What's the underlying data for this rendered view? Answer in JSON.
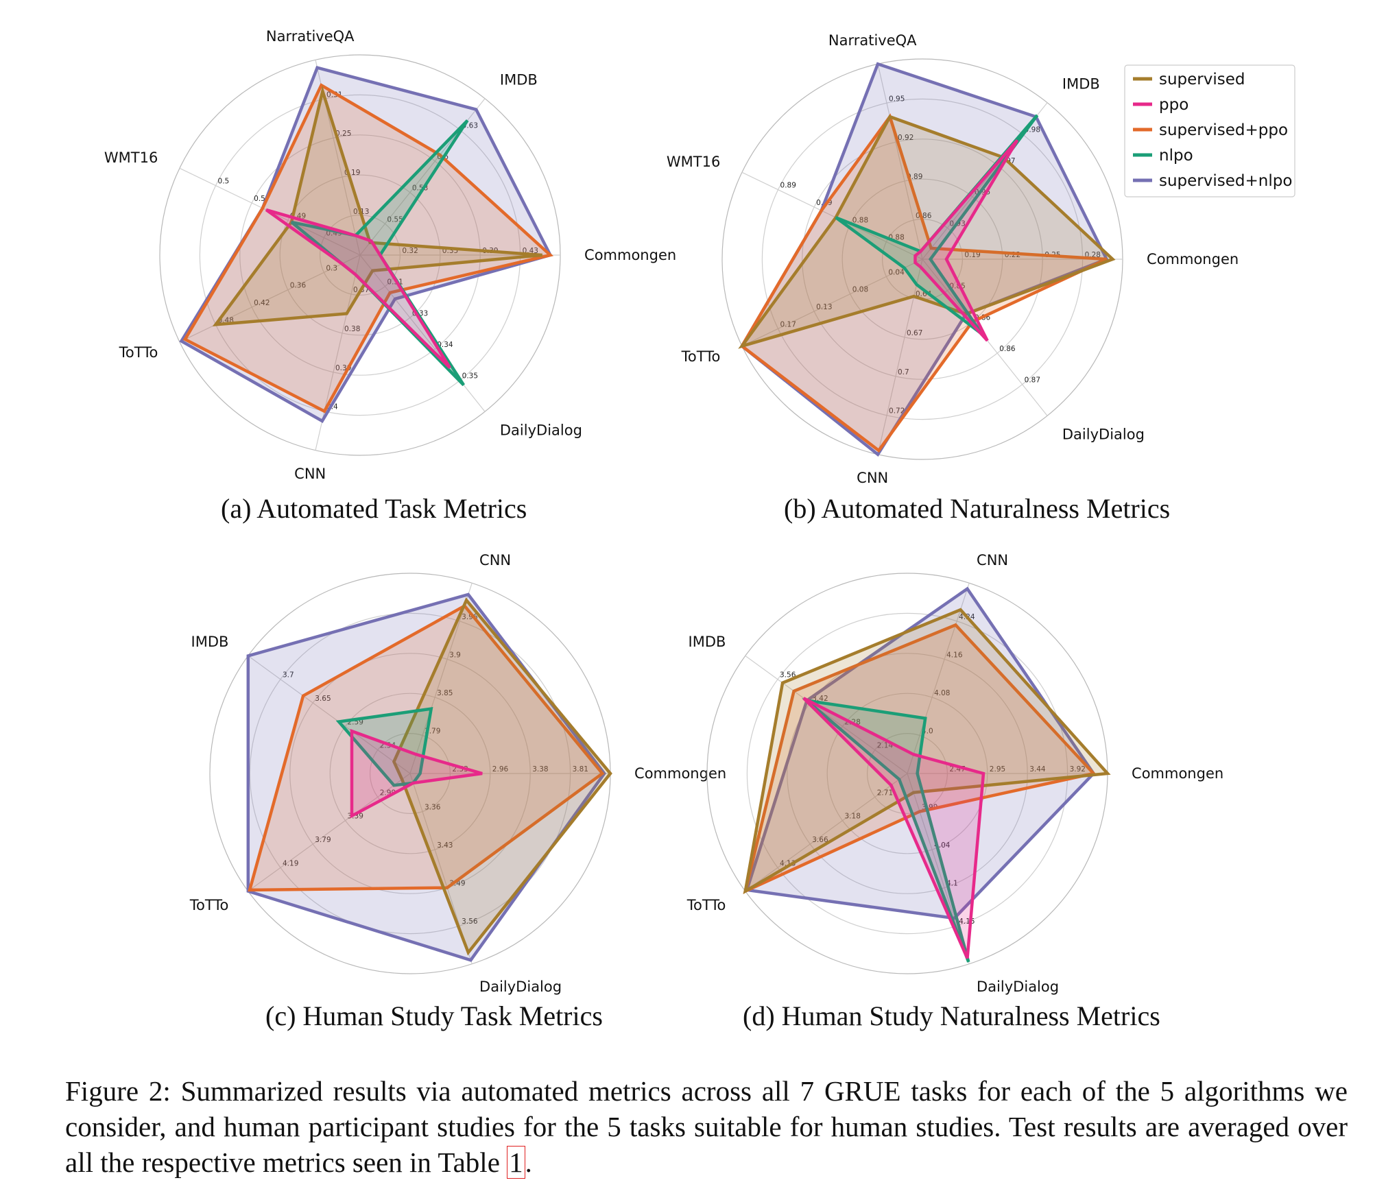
{
  "legend": [
    {
      "name": "supervised",
      "color": "#a57d2c"
    },
    {
      "name": "ppo",
      "color": "#e7298a"
    },
    {
      "name": "supervised+ppo",
      "color": "#e36a2a"
    },
    {
      "name": "nlpo",
      "color": "#1b9e77"
    },
    {
      "name": "supervised+nlpo",
      "color": "#7570b3"
    }
  ],
  "figure_caption": {
    "text": "Figure 2: Summarized results via automated metrics across all 7 GRUE tasks for each of the 5 algorithms we consider, and human participant studies for the 5 tasks suitable for human studies. Test results are averaged over all the respective metrics seen in Table ",
    "ref": "1",
    "end": "."
  },
  "chart_data": [
    {
      "type": "radar",
      "caption": "(a)  Automated Task Metrics",
      "axes": [
        "Commongen",
        "IMDB",
        "NarrativeQA",
        "WMT16",
        "ToTTo",
        "CNN",
        "DailyDialog"
      ],
      "rings": 5,
      "start_angle_deg": 0,
      "legend": "right of (b)",
      "ticks": [
        [
          "0.32",
          "0.35",
          "0.39",
          "0.43"
        ],
        [
          "0.55",
          "0.58",
          "0.6",
          "0.63"
        ],
        [
          "0.13",
          "0.19",
          "0.25",
          "0.31"
        ],
        [
          "0.49",
          "0.49",
          "0.5",
          "0.5"
        ],
        [
          "0.3",
          "0.36",
          "0.42",
          "0.48"
        ],
        [
          "0.37",
          "0.38",
          "0.39",
          "0.4"
        ],
        [
          "0.31",
          "0.33",
          "0.34",
          "0.35"
        ]
      ],
      "series": [
        {
          "name": "supervised",
          "values": [
            0.91,
            0.08,
            0.84,
            0.38,
            0.8,
            0.3,
            0.1
          ]
        },
        {
          "name": "ppo",
          "values": [
            0.1,
            0.09,
            0.1,
            0.52,
            0.1,
            0.1,
            0.72
          ]
        },
        {
          "name": "supervised+ppo",
          "values": [
            0.95,
            0.64,
            0.87,
            0.54,
            0.97,
            0.8,
            0.24
          ]
        },
        {
          "name": "nlpo",
          "values": [
            0.1,
            0.86,
            0.1,
            0.38,
            0.1,
            0.1,
            0.83
          ]
        },
        {
          "name": "supervised+nlpo",
          "values": [
            0.95,
            0.93,
            0.96,
            0.54,
            0.99,
            0.85,
            0.28
          ]
        }
      ]
    },
    {
      "type": "radar",
      "caption": "(b)  Automated Naturalness Metrics",
      "axes": [
        "Commongen",
        "IMDB",
        "NarrativeQA",
        "WMT16",
        "ToTTo",
        "CNN",
        "DailyDialog"
      ],
      "rings": 5,
      "start_angle_deg": 0,
      "legend": "top-right",
      "ticks": [
        [
          "0.19",
          "0.22",
          "0.25",
          "0.28"
        ],
        [
          "0.93",
          "0.95",
          "0.97",
          "0.98"
        ],
        [
          "0.86",
          "0.89",
          "0.92",
          "0.95"
        ],
        [
          "0.88",
          "0.88",
          "0.89",
          "0.89"
        ],
        [
          "0.04",
          "0.08",
          "0.13",
          "0.17"
        ],
        [
          "0.64",
          "0.67",
          "0.7",
          "0.72"
        ],
        [
          "0.85",
          "0.86",
          "0.86",
          "0.87"
        ]
      ],
      "series": [
        {
          "name": "supervised",
          "values": [
            0.95,
            0.65,
            0.73,
            0.48,
            1.0,
            0.19,
            0.35
          ]
        },
        {
          "name": "ppo",
          "values": [
            0.12,
            0.76,
            0.04,
            0.04,
            0.04,
            0.04,
            0.52
          ]
        },
        {
          "name": "supervised+ppo",
          "values": [
            0.92,
            0.07,
            0.73,
            0.56,
            1.0,
            0.98,
            0.4
          ]
        },
        {
          "name": "nlpo",
          "values": [
            0.04,
            0.92,
            0.04,
            0.48,
            0.1,
            0.13,
            0.48
          ]
        },
        {
          "name": "supervised+nlpo",
          "values": [
            0.92,
            0.91,
            1.0,
            0.56,
            1.0,
            1.0,
            0.35
          ]
        }
      ]
    },
    {
      "type": "radar",
      "caption": "(c)  Human Study Task Metrics",
      "axes": [
        "Commongen",
        "CNN",
        "IMDB",
        "ToTTo",
        "DailyDialog"
      ],
      "rings": 5,
      "start_angle_deg": 0,
      "legend": "none",
      "ticks": [
        [
          "2.53",
          "2.96",
          "3.38",
          "3.81"
        ],
        [
          "3.79",
          "3.85",
          "3.9",
          "3.96"
        ],
        [
          "2.54",
          "2.59",
          "3.65",
          "3.7"
        ],
        [
          "2.99",
          "3.39",
          "3.79",
          "4.19"
        ],
        [
          "3.36",
          "3.43",
          "3.49",
          "3.56"
        ]
      ],
      "series": [
        {
          "name": "supervised",
          "values": [
            1.0,
            0.91,
            0.1,
            0.05,
            0.94
          ]
        },
        {
          "name": "ppo",
          "values": [
            0.36,
            0.1,
            0.36,
            0.36,
            0.05
          ]
        },
        {
          "name": "supervised+ppo",
          "values": [
            0.96,
            0.88,
            0.66,
            0.99,
            0.6
          ]
        },
        {
          "name": "nlpo",
          "values": [
            0.05,
            0.34,
            0.44,
            0.1,
            0.05
          ]
        },
        {
          "name": "supervised+nlpo",
          "values": [
            0.97,
            0.94,
            1.0,
            1.0,
            0.98
          ]
        }
      ]
    },
    {
      "type": "radar",
      "caption": "(d)  Human Study Naturalness Metrics",
      "axes": [
        "Commongen",
        "CNN",
        "IMDB",
        "ToTTo",
        "DailyDialog"
      ],
      "rings": 5,
      "start_angle_deg": 0,
      "legend": "none",
      "ticks": [
        [
          "2.47",
          "2.95",
          "3.44",
          "3.92"
        ],
        [
          "4.0",
          "4.08",
          "4.16",
          "4.24"
        ],
        [
          "2.14",
          "2.28",
          "3.42",
          "3.56"
        ],
        [
          "2.71",
          "3.18",
          "3.66",
          "4.13"
        ],
        [
          "3.99",
          "4.04",
          "4.1",
          "4.15"
        ]
      ],
      "series": [
        {
          "name": "supervised",
          "values": [
            1.0,
            0.86,
            0.77,
            1.0,
            0.1
          ]
        },
        {
          "name": "ppo",
          "values": [
            0.38,
            0.1,
            0.64,
            0.1,
            0.97
          ]
        },
        {
          "name": "supervised+ppo",
          "values": [
            0.93,
            0.78,
            0.7,
            1.0,
            0.2
          ]
        },
        {
          "name": "nlpo",
          "values": [
            0.05,
            0.29,
            0.62,
            0.05,
            0.99
          ]
        },
        {
          "name": "supervised+nlpo",
          "values": [
            0.93,
            0.97,
            0.62,
            0.99,
            0.76
          ]
        }
      ]
    }
  ]
}
